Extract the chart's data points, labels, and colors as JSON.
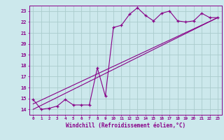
{
  "title": "",
  "xlabel": "Windchill (Refroidissement éolien,°C)",
  "xlim": [
    -0.5,
    23.5
  ],
  "ylim": [
    13.5,
    23.5
  ],
  "xtick_labels": [
    "0",
    "1",
    "2",
    "3",
    "4",
    "5",
    "6",
    "7",
    "8",
    "9",
    "10",
    "11",
    "12",
    "13",
    "14",
    "15",
    "16",
    "17",
    "18",
    "19",
    "20",
    "21",
    "22",
    "23"
  ],
  "ytick_labels": [
    "14",
    "15",
    "16",
    "17",
    "18",
    "19",
    "20",
    "21",
    "22",
    "23"
  ],
  "bg_color": "#cce8ec",
  "grid_color": "#aacccc",
  "line_color": "#880088",
  "line1_x": [
    0,
    1,
    2,
    3,
    4,
    5,
    6,
    7,
    8,
    9,
    10,
    11,
    12,
    13,
    14,
    15,
    16,
    17,
    18,
    19,
    20,
    21,
    22,
    23
  ],
  "line1_y": [
    14.9,
    14.0,
    14.1,
    14.3,
    14.9,
    14.4,
    14.4,
    14.4,
    17.8,
    15.2,
    21.5,
    21.7,
    22.7,
    23.3,
    22.6,
    22.1,
    22.8,
    23.0,
    22.1,
    22.0,
    22.1,
    22.8,
    22.4,
    22.4
  ],
  "line2_x": [
    0,
    23
  ],
  "line2_y": [
    14.0,
    22.4
  ],
  "line3_x": [
    0,
    23
  ],
  "line3_y": [
    14.5,
    22.4
  ]
}
